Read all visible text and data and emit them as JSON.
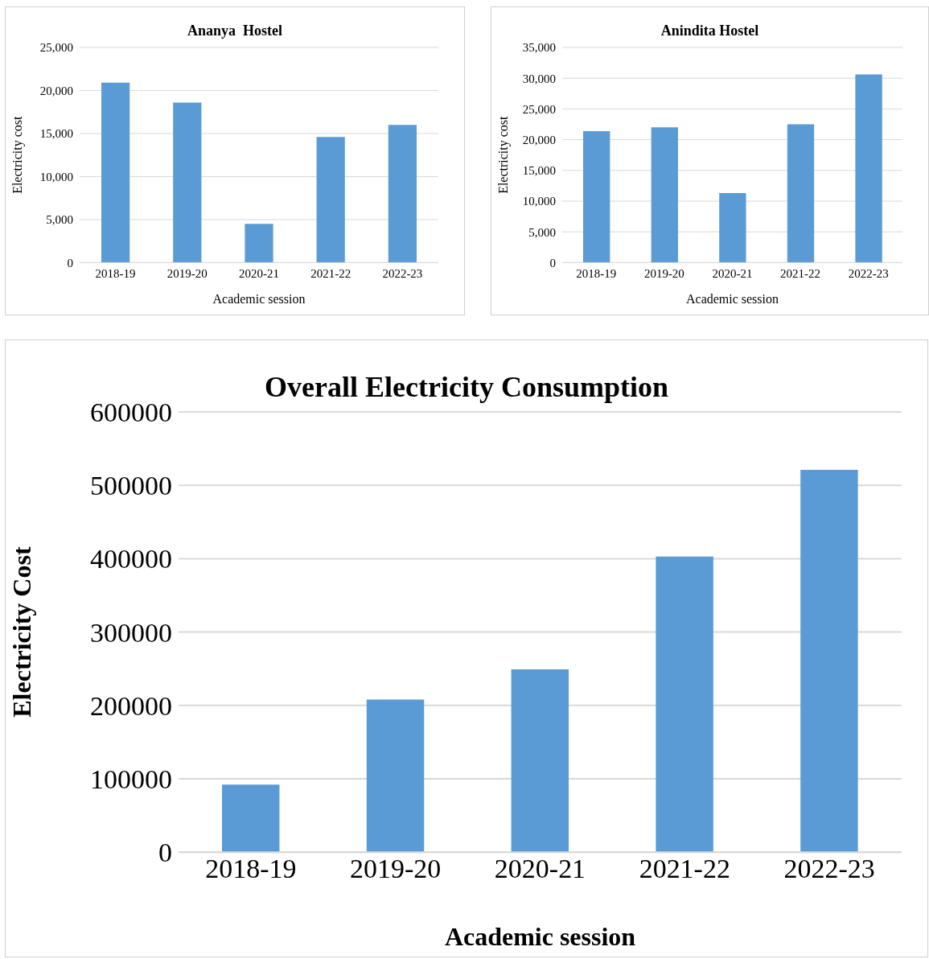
{
  "chart_data": [
    {
      "type": "bar",
      "title": "Ananya  Hostel",
      "xlabel": "Academic session",
      "ylabel": "Electricity cost",
      "categories": [
        "2018-19",
        "2019-20",
        "2020-21",
        "2021-22",
        "2022-23"
      ],
      "values": [
        20900,
        18600,
        4500,
        14600,
        16000
      ],
      "color": "#5b9bd5",
      "ylim": [
        0,
        25000
      ],
      "yticks": [
        {
          "value": 0,
          "label": "0"
        },
        {
          "value": 5000,
          "label": "5,000"
        },
        {
          "value": 10000,
          "label": "10,000"
        },
        {
          "value": 15000,
          "label": "15,000"
        },
        {
          "value": 20000,
          "label": "20,000"
        },
        {
          "value": 25000,
          "label": "25,000"
        }
      ],
      "grid": "y"
    },
    {
      "type": "bar",
      "title": "Anindita Hostel",
      "xlabel": "Academic session",
      "ylabel": "Electricity cost",
      "categories": [
        "2018-19",
        "2019-20",
        "2020-21",
        "2021-22",
        "2022-23"
      ],
      "values": [
        21400,
        22000,
        11300,
        22500,
        30600
      ],
      "color": "#5b9bd5",
      "ylim": [
        0,
        35000
      ],
      "yticks": [
        {
          "value": 0,
          "label": "0"
        },
        {
          "value": 5000,
          "label": "5,000"
        },
        {
          "value": 10000,
          "label": "10,000"
        },
        {
          "value": 15000,
          "label": "15,000"
        },
        {
          "value": 20000,
          "label": "20,000"
        },
        {
          "value": 25000,
          "label": "25,000"
        },
        {
          "value": 30000,
          "label": "30,000"
        },
        {
          "value": 35000,
          "label": "35,000"
        }
      ],
      "grid": "y"
    },
    {
      "type": "bar",
      "title": "Overall Electricity Consumption",
      "xlabel": "Academic session",
      "ylabel": "Electricity Cost",
      "categories": [
        "2018-19",
        "2019-20",
        "2020-21",
        "2021-22",
        "2022-23"
      ],
      "values": [
        92000,
        208000,
        249000,
        403000,
        521000
      ],
      "color": "#5b9bd5",
      "ylim": [
        0,
        600000
      ],
      "yticks": [
        0,
        100000,
        200000,
        300000,
        400000,
        500000,
        600000
      ],
      "grid": "y"
    }
  ]
}
